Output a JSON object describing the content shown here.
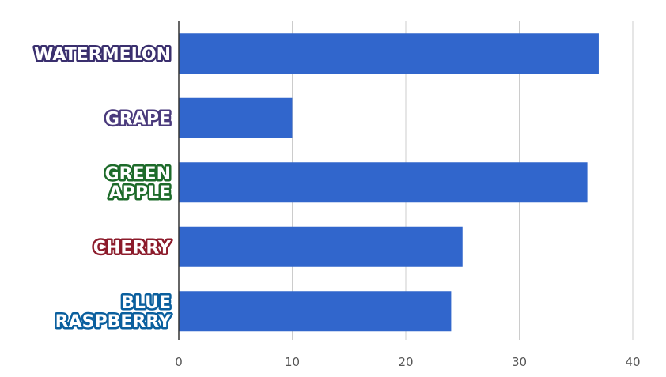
{
  "chart_data": {
    "type": "bar",
    "orientation": "horizontal",
    "categories": [
      "WATERMELON",
      "GRAPE",
      "GREEN APPLE",
      "CHERRY",
      "BLUE RASPBERRY"
    ],
    "category_lines": [
      [
        "WATERMELON"
      ],
      [
        "GRAPE"
      ],
      [
        "GREEN",
        "APPLE"
      ],
      [
        "CHERRY"
      ],
      [
        "BLUE",
        "RASPBERRY"
      ]
    ],
    "values": [
      37,
      10,
      36,
      25,
      24
    ],
    "x_ticks": [
      "0",
      "10",
      "20",
      "30",
      "40"
    ],
    "xlim": [
      0,
      40
    ],
    "grid": true,
    "legend": "none",
    "bar_color": "#3166cc",
    "label_colors": [
      {
        "fill": "#ffffff",
        "stroke": "#3a2f6e"
      },
      {
        "fill": "#ffffff",
        "stroke": "#4a3a7c"
      },
      {
        "fill": "#ffffff",
        "stroke": "#1d6b2a"
      },
      {
        "fill": "#ffffff",
        "stroke": "#8c1b2b"
      },
      {
        "fill": "#ffffff",
        "stroke": "#0a5f9e"
      }
    ],
    "grid_color": "#cccccc",
    "axis_color": "#333333"
  }
}
